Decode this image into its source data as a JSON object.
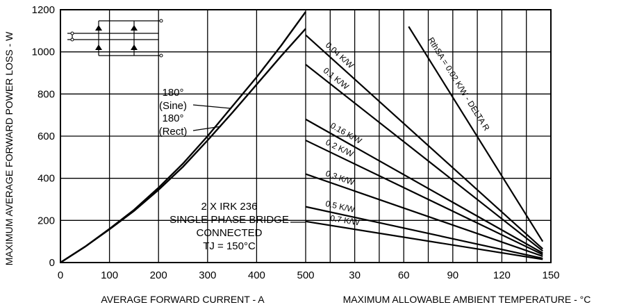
{
  "chart_data": {
    "type": "line",
    "ylabel": "MAXIMUM AVERAGE FORWARD POWER LOSS - W",
    "ylim": [
      0,
      1200
    ],
    "yticks": [
      "0",
      "200",
      "400",
      "600",
      "800",
      "1000",
      "1200"
    ],
    "grid": true,
    "left_panel": {
      "xlabel": "AVERAGE FORWARD CURRENT - A",
      "xlim": [
        0,
        500
      ],
      "xticks": [
        "0",
        "100",
        "200",
        "300",
        "400",
        "500"
      ],
      "series": [
        {
          "name": "180° (Sine)",
          "x": [
            0,
            50,
            100,
            150,
            200,
            250,
            300,
            350,
            400,
            450,
            500
          ],
          "values": [
            0,
            75,
            160,
            250,
            355,
            470,
            600,
            740,
            880,
            1030,
            1190
          ]
        },
        {
          "name": "180° (Rect)",
          "x": [
            0,
            50,
            100,
            150,
            200,
            250,
            300,
            350,
            400,
            450,
            500
          ],
          "values": [
            0,
            75,
            158,
            245,
            345,
            455,
            580,
            710,
            845,
            980,
            1110
          ]
        }
      ],
      "annotation": [
        "2 X IRK 236",
        "SINGLE PHASE BRIDGE",
        "CONNECTED",
        "TJ = 150°C"
      ]
    },
    "right_panel": {
      "xlabel": "MAXIMUM ALLOWABLE AMBIENT TEMPERATURE - °C",
      "xlim": [
        0,
        150
      ],
      "xticks": [
        "30",
        "60",
        "90",
        "120",
        "150"
      ],
      "series": [
        {
          "name": "RthSA = 0.02 K/W - DELTA R",
          "x": [
            63,
            145
          ],
          "values": [
            1120,
            100
          ]
        },
        {
          "name": "0.04 K/W",
          "x": [
            0,
            145
          ],
          "values": [
            1080,
            65
          ]
        },
        {
          "name": "0.1 K/W",
          "x": [
            0,
            145
          ],
          "values": [
            940,
            55
          ]
        },
        {
          "name": "0.16 K/W",
          "x": [
            0,
            145
          ],
          "values": [
            680,
            45
          ]
        },
        {
          "name": "0.2 K/W",
          "x": [
            0,
            145
          ],
          "values": [
            580,
            38
          ]
        },
        {
          "name": "0.3 K/W",
          "x": [
            0,
            145
          ],
          "values": [
            420,
            30
          ]
        },
        {
          "name": "0.5 K/W",
          "x": [
            0,
            145
          ],
          "values": [
            265,
            20
          ]
        },
        {
          "name": "0.7 K/W",
          "x": [
            0,
            145
          ],
          "values": [
            195,
            15
          ]
        }
      ]
    },
    "curve_labels": {
      "sine": [
        "180°",
        "(Sine)"
      ],
      "rect": [
        "180°",
        "(Rect)"
      ]
    }
  }
}
